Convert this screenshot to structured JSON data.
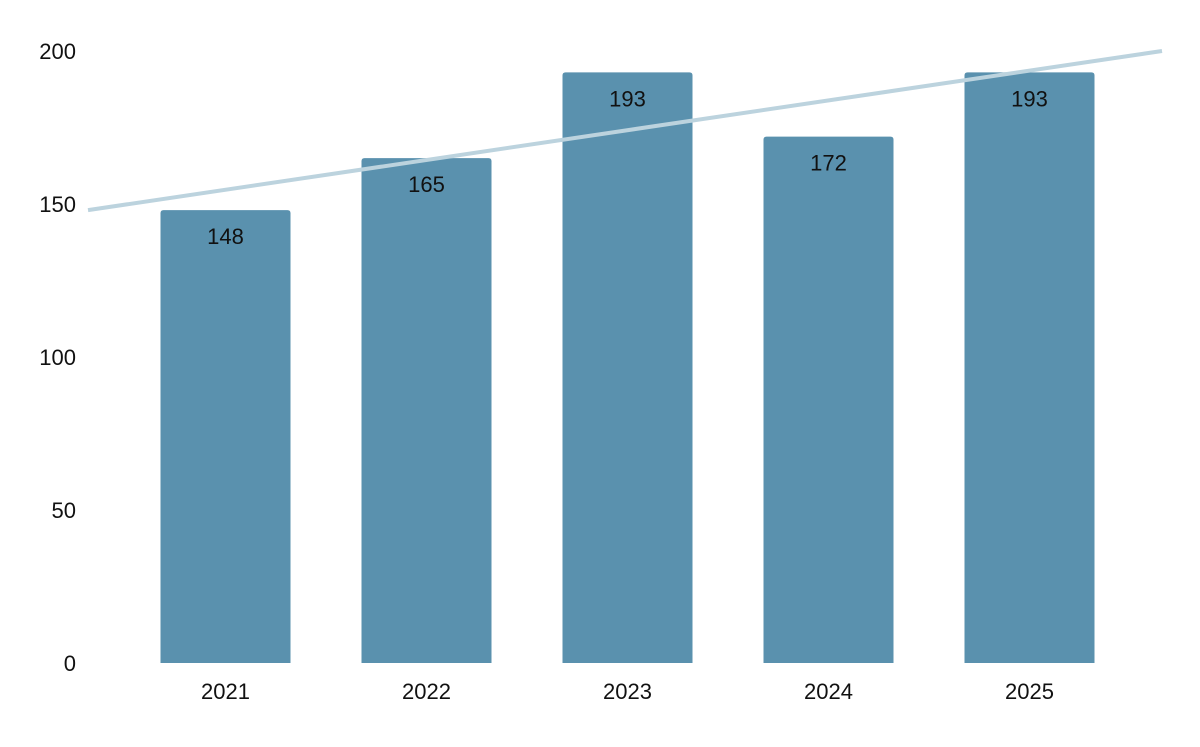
{
  "chart_data": {
    "type": "bar",
    "categories": [
      "2021",
      "2022",
      "2023",
      "2024",
      "2025"
    ],
    "series": [
      {
        "values": [
          148,
          165,
          193,
          172,
          193
        ],
        "color": "#5a91ae"
      }
    ],
    "data_labels": [
      "148",
      "165",
      "193",
      "172",
      "193"
    ],
    "y_ticks": [
      0,
      50,
      100,
      150,
      200
    ],
    "ylim": [
      0,
      200
    ],
    "grid": false,
    "legend": "none",
    "trendline": {
      "type": "linear",
      "color": "#bcd3de",
      "start_value": 148,
      "end_value": 200
    }
  }
}
